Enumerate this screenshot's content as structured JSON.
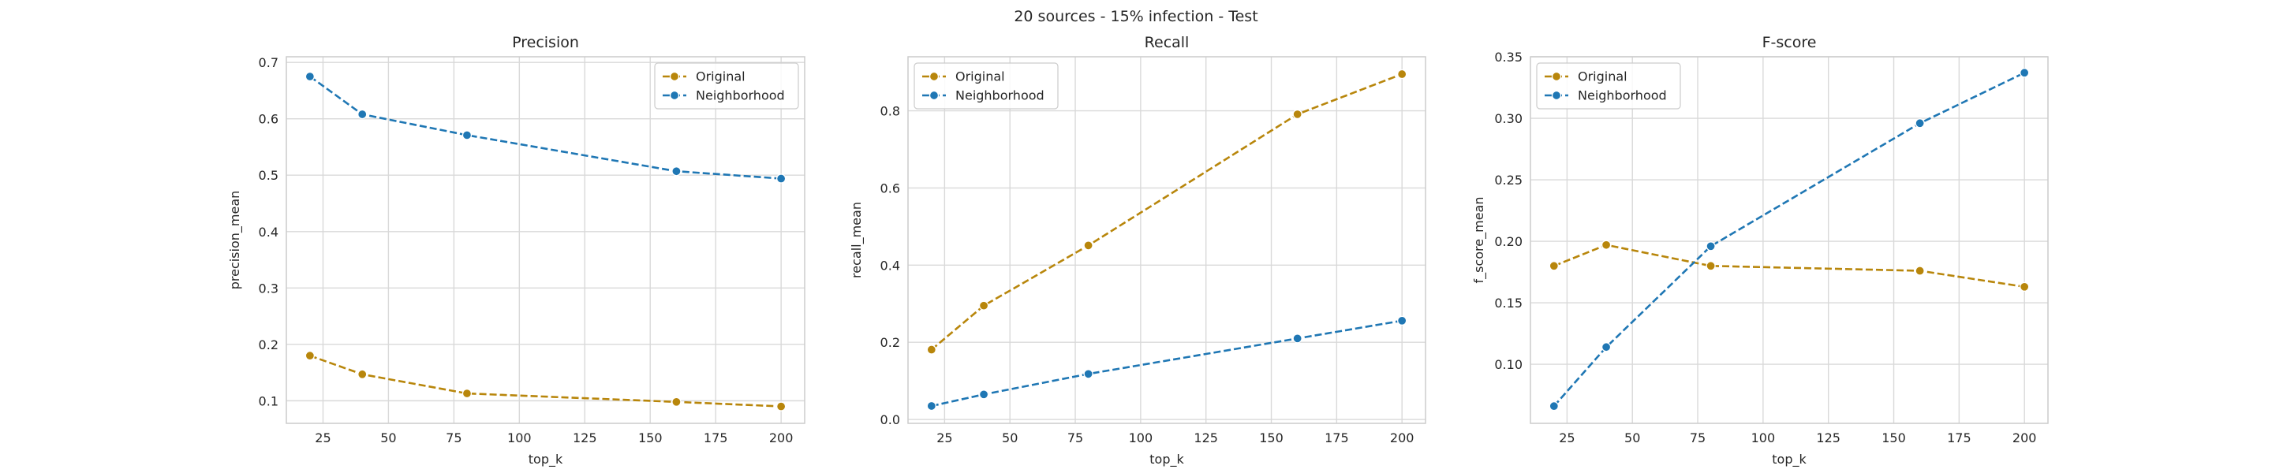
{
  "figure": {
    "suptitle": "20 sources - 15% infection - Test"
  },
  "colors": {
    "original": "#b8860b",
    "neighborhood": "#1f77b4",
    "grid": "#d9d9d9",
    "axes_edge": "#cccccc",
    "text": "#262626"
  },
  "chart_data": [
    {
      "type": "line",
      "title": "Precision",
      "xlabel": "top_k",
      "ylabel": "precision_mean",
      "xlim": [
        11,
        209
      ],
      "ylim": [
        0.06,
        0.71
      ],
      "xticks": [
        25,
        50,
        75,
        100,
        125,
        150,
        175,
        200
      ],
      "yticks": [
        0.1,
        0.2,
        0.3,
        0.4,
        0.5,
        0.6,
        0.7
      ],
      "ytick_labels": [
        "0.1",
        "0.2",
        "0.3",
        "0.4",
        "0.5",
        "0.6",
        "0.7"
      ],
      "grid": true,
      "legend": "upper right",
      "x": [
        20,
        40,
        80,
        160,
        200
      ],
      "series": [
        {
          "name": "Original",
          "color_key": "original",
          "values": [
            0.18,
            0.147,
            0.113,
            0.098,
            0.09
          ]
        },
        {
          "name": "Neighborhood",
          "color_key": "neighborhood",
          "values": [
            0.675,
            0.608,
            0.571,
            0.507,
            0.494
          ]
        }
      ]
    },
    {
      "type": "line",
      "title": "Recall",
      "xlabel": "top_k",
      "ylabel": "recall_mean",
      "xlim": [
        11,
        209
      ],
      "ylim": [
        -0.01,
        0.94
      ],
      "xticks": [
        25,
        50,
        75,
        100,
        125,
        150,
        175,
        200
      ],
      "yticks": [
        0.0,
        0.2,
        0.4,
        0.6,
        0.8
      ],
      "ytick_labels": [
        "0.0",
        "0.2",
        "0.4",
        "0.6",
        "0.8"
      ],
      "grid": true,
      "legend": "upper left",
      "x": [
        20,
        40,
        80,
        160,
        200
      ],
      "series": [
        {
          "name": "Original",
          "color_key": "original",
          "values": [
            0.181,
            0.295,
            0.451,
            0.791,
            0.895
          ]
        },
        {
          "name": "Neighborhood",
          "color_key": "neighborhood",
          "values": [
            0.035,
            0.065,
            0.118,
            0.21,
            0.256
          ]
        }
      ]
    },
    {
      "type": "line",
      "title": "F-score",
      "xlabel": "top_k",
      "ylabel": "f_score_mean",
      "xlim": [
        11,
        209
      ],
      "ylim": [
        0.052,
        0.35
      ],
      "xticks": [
        25,
        50,
        75,
        100,
        125,
        150,
        175,
        200
      ],
      "yticks": [
        0.1,
        0.15,
        0.2,
        0.25,
        0.3,
        0.35
      ],
      "ytick_labels": [
        "0.10",
        "0.15",
        "0.20",
        "0.25",
        "0.30",
        "0.35"
      ],
      "grid": true,
      "legend": "upper left",
      "x": [
        20,
        40,
        80,
        160,
        200
      ],
      "series": [
        {
          "name": "Original",
          "color_key": "original",
          "values": [
            0.18,
            0.197,
            0.18,
            0.176,
            0.163
          ]
        },
        {
          "name": "Neighborhood",
          "color_key": "neighborhood",
          "values": [
            0.066,
            0.114,
            0.196,
            0.296,
            0.337
          ]
        }
      ]
    }
  ]
}
